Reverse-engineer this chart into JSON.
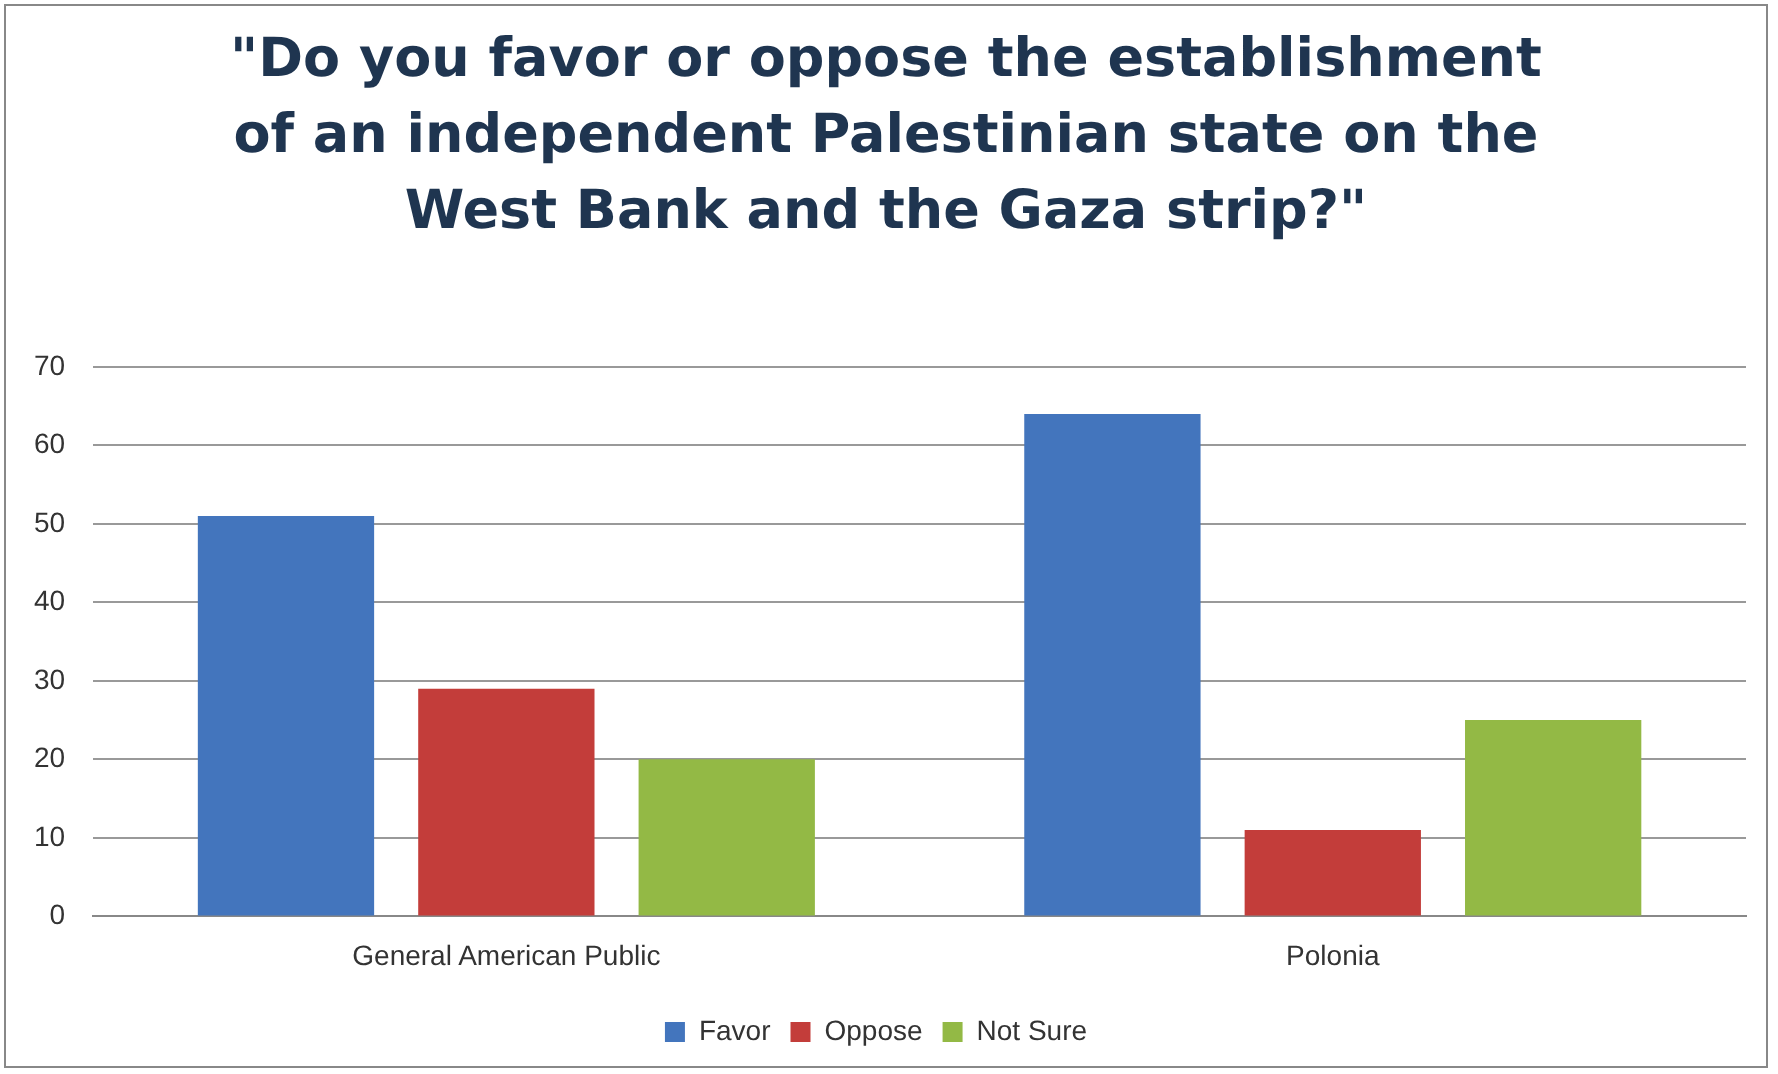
{
  "chart_data": {
    "type": "bar",
    "title": "\"Do you favor or oppose the establishment of an independent Palestinian state on the West Bank and the Gaza strip?\"",
    "categories": [
      "General American Public",
      "Polonia"
    ],
    "series": [
      {
        "name": "Favor",
        "color": "#4375bd",
        "values": [
          51,
          64
        ]
      },
      {
        "name": "Oppose",
        "color": "#c33d3a",
        "values": [
          29,
          11
        ]
      },
      {
        "name": "Not Sure",
        "color": "#93b945",
        "values": [
          20,
          25
        ]
      }
    ],
    "ylim": [
      0,
      70
    ],
    "yticks": [
      0,
      10,
      20,
      30,
      40,
      50,
      60,
      70
    ],
    "grid": "y",
    "legend": "bottom"
  }
}
